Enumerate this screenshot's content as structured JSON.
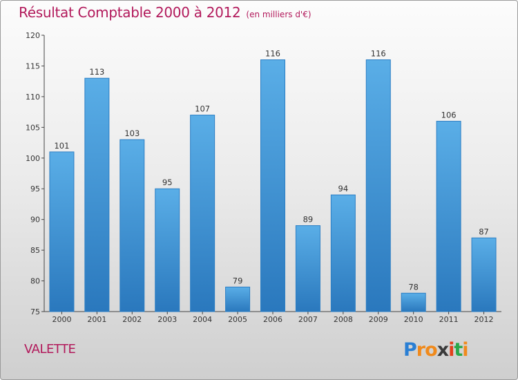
{
  "title": "Résultat Comptable 2000 à 2012",
  "subtitle": "(en milliers d'€)",
  "commune": "VALETTE",
  "logo": {
    "letters": [
      "P",
      "r",
      "o",
      "x",
      "i",
      "t",
      "i"
    ],
    "colors": [
      "#2a7fd4",
      "#f08a1c",
      "#f08a1c",
      "#3a3a3a",
      "#e2411b",
      "#2aa84a",
      "#f08a1c"
    ]
  },
  "colors": {
    "bar": "#3b96d9",
    "accent": "#b2195b"
  },
  "chart_data": {
    "type": "bar",
    "title": "Résultat Comptable 2000 à 2012",
    "subtitle": "(en milliers d'€)",
    "categories": [
      "2000",
      "2001",
      "2002",
      "2003",
      "2004",
      "2005",
      "2006",
      "2007",
      "2008",
      "2009",
      "2010",
      "2011",
      "2012"
    ],
    "values": [
      101,
      113,
      103,
      95,
      107,
      79,
      116,
      89,
      94,
      116,
      78,
      106,
      87
    ],
    "ylim": [
      75,
      120
    ],
    "yticks": [
      75,
      80,
      85,
      90,
      95,
      100,
      105,
      110,
      115,
      120
    ],
    "grid": false,
    "legend": "none",
    "xlabel": "",
    "ylabel": ""
  }
}
